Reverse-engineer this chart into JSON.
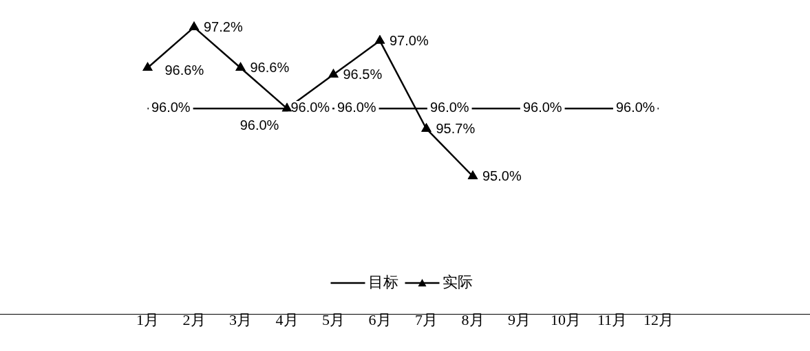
{
  "chart_data": {
    "type": "line",
    "categories": [
      "1月",
      "2月",
      "3月",
      "4月",
      "5月",
      "6月",
      "7月",
      "8月",
      "9月",
      "10月",
      "11月",
      "12月"
    ],
    "series": [
      {
        "name": "目标",
        "color": "#000000",
        "marker": "none",
        "values": [
          96.0,
          96.0,
          96.0,
          96.0,
          96.0,
          96.0,
          96.0,
          96.0,
          96.0,
          96.0,
          96.0,
          96.0
        ],
        "value_labels": [
          "96.0%",
          null,
          null,
          "96.0%",
          "96.0%",
          null,
          "96.0%",
          null,
          "96.0%",
          null,
          "96.0%",
          null
        ]
      },
      {
        "name": "实际",
        "color": "#000000",
        "marker": "triangle",
        "values": [
          96.6,
          97.2,
          96.6,
          96.0,
          96.5,
          97.0,
          95.7,
          95.0,
          null,
          null,
          null,
          null
        ],
        "value_labels": [
          "96.6%",
          "97.2%",
          "96.6%",
          "96.0%",
          "96.5%",
          "97.0%",
          "95.7%",
          "95.0%",
          null,
          null,
          null,
          null
        ]
      }
    ],
    "tick_labels": "x",
    "grid": false,
    "legend": "bottom",
    "line_style": "solid"
  }
}
